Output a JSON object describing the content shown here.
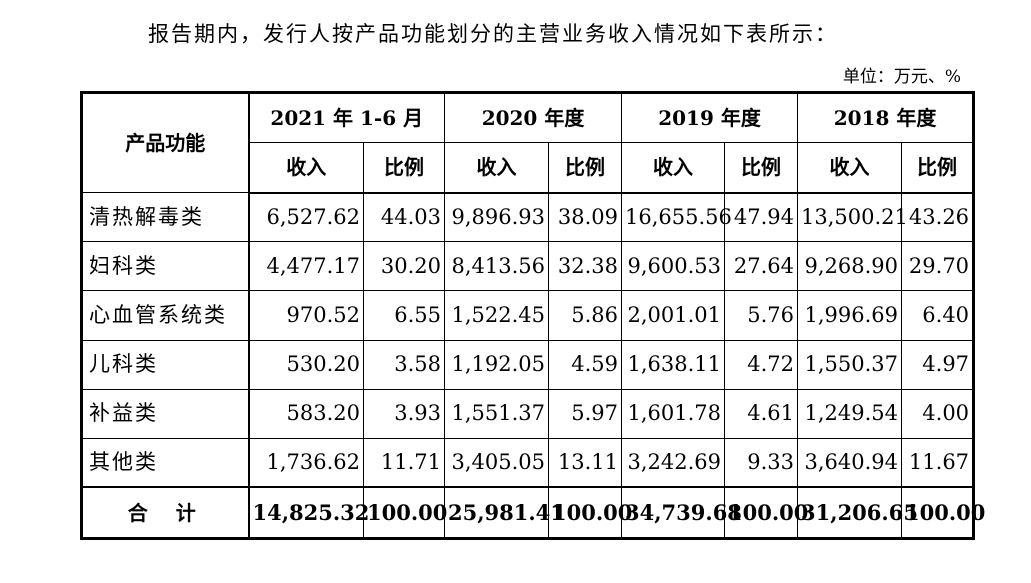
{
  "intro": "报告期内，发行人按产品功能划分的主营业务收入情况如下表所示：",
  "unit": "单位：万元、%",
  "table": {
    "header_main": "产品功能",
    "periods": [
      "2021 年 1-6 月",
      "2020 年度",
      "2019 年度",
      "2018 年度"
    ],
    "sub_headers": [
      "收入",
      "比例"
    ],
    "rows": [
      {
        "name": "清热解毒类",
        "values": [
          "6,527.62",
          "44.03",
          "9,896.93",
          "38.09",
          "16,655.56",
          "47.94",
          "13,500.21",
          "43.26"
        ]
      },
      {
        "name": "妇科类",
        "values": [
          "4,477.17",
          "30.20",
          "8,413.56",
          "32.38",
          "9,600.53",
          "27.64",
          "9,268.90",
          "29.70"
        ]
      },
      {
        "name": "心血管系统类",
        "values": [
          "970.52",
          "6.55",
          "1,522.45",
          "5.86",
          "2,001.01",
          "5.76",
          "1,996.69",
          "6.40"
        ]
      },
      {
        "name": "儿科类",
        "values": [
          "530.20",
          "3.58",
          "1,192.05",
          "4.59",
          "1,638.11",
          "4.72",
          "1,550.37",
          "4.97"
        ]
      },
      {
        "name": "补益类",
        "values": [
          "583.20",
          "3.93",
          "1,551.37",
          "5.97",
          "1,601.78",
          "4.61",
          "1,249.54",
          "4.00"
        ]
      },
      {
        "name": "其他类",
        "values": [
          "1,736.62",
          "11.71",
          "3,405.05",
          "13.11",
          "3,242.69",
          "9.33",
          "3,640.94",
          "11.67"
        ]
      }
    ],
    "total": {
      "name": "合计",
      "values": [
        "14,825.32",
        "100.00",
        "25,981.41",
        "100.00",
        "34,739.68",
        "100.00",
        "31,206.65",
        "100.00"
      ]
    }
  }
}
